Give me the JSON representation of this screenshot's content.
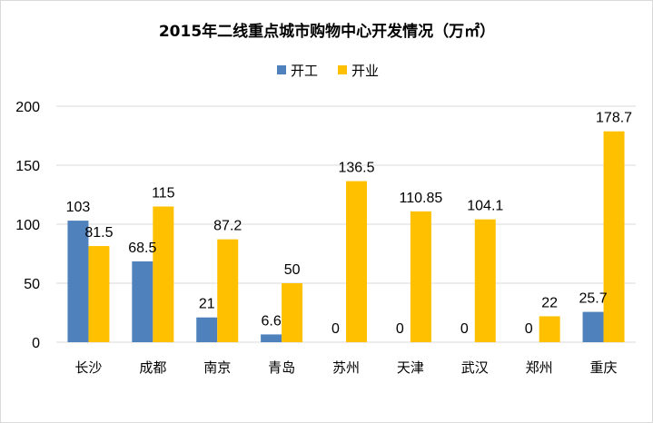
{
  "chart_data": {
    "type": "bar",
    "title": "2015年二线重点城市购物中心开发情况（万㎡）",
    "categories": [
      "长沙",
      "成都",
      "南京",
      "青岛",
      "苏州",
      "天津",
      "武汉",
      "郑州",
      "重庆"
    ],
    "series": [
      {
        "name": "开工",
        "color": "#4f81bd",
        "values": [
          103,
          68.5,
          21,
          6.6,
          0,
          0,
          0,
          0,
          25.7
        ],
        "labels": [
          "103",
          "68.5",
          "21",
          "6.6",
          "0",
          "0",
          "0",
          "0",
          "25.7"
        ]
      },
      {
        "name": "开业",
        "color": "#ffc000",
        "values": [
          81.5,
          115,
          87.2,
          50,
          136.5,
          110.85,
          104.1,
          22,
          178.7
        ],
        "labels": [
          "81.5",
          "115",
          "87.2",
          "50",
          "136.5",
          "110.85",
          "104.1",
          "22",
          "178.7"
        ]
      }
    ],
    "ylim": [
      0,
      200
    ],
    "yticks": [
      "0",
      "50",
      "100",
      "150",
      "200"
    ],
    "legend_position": "top",
    "grid": true
  }
}
